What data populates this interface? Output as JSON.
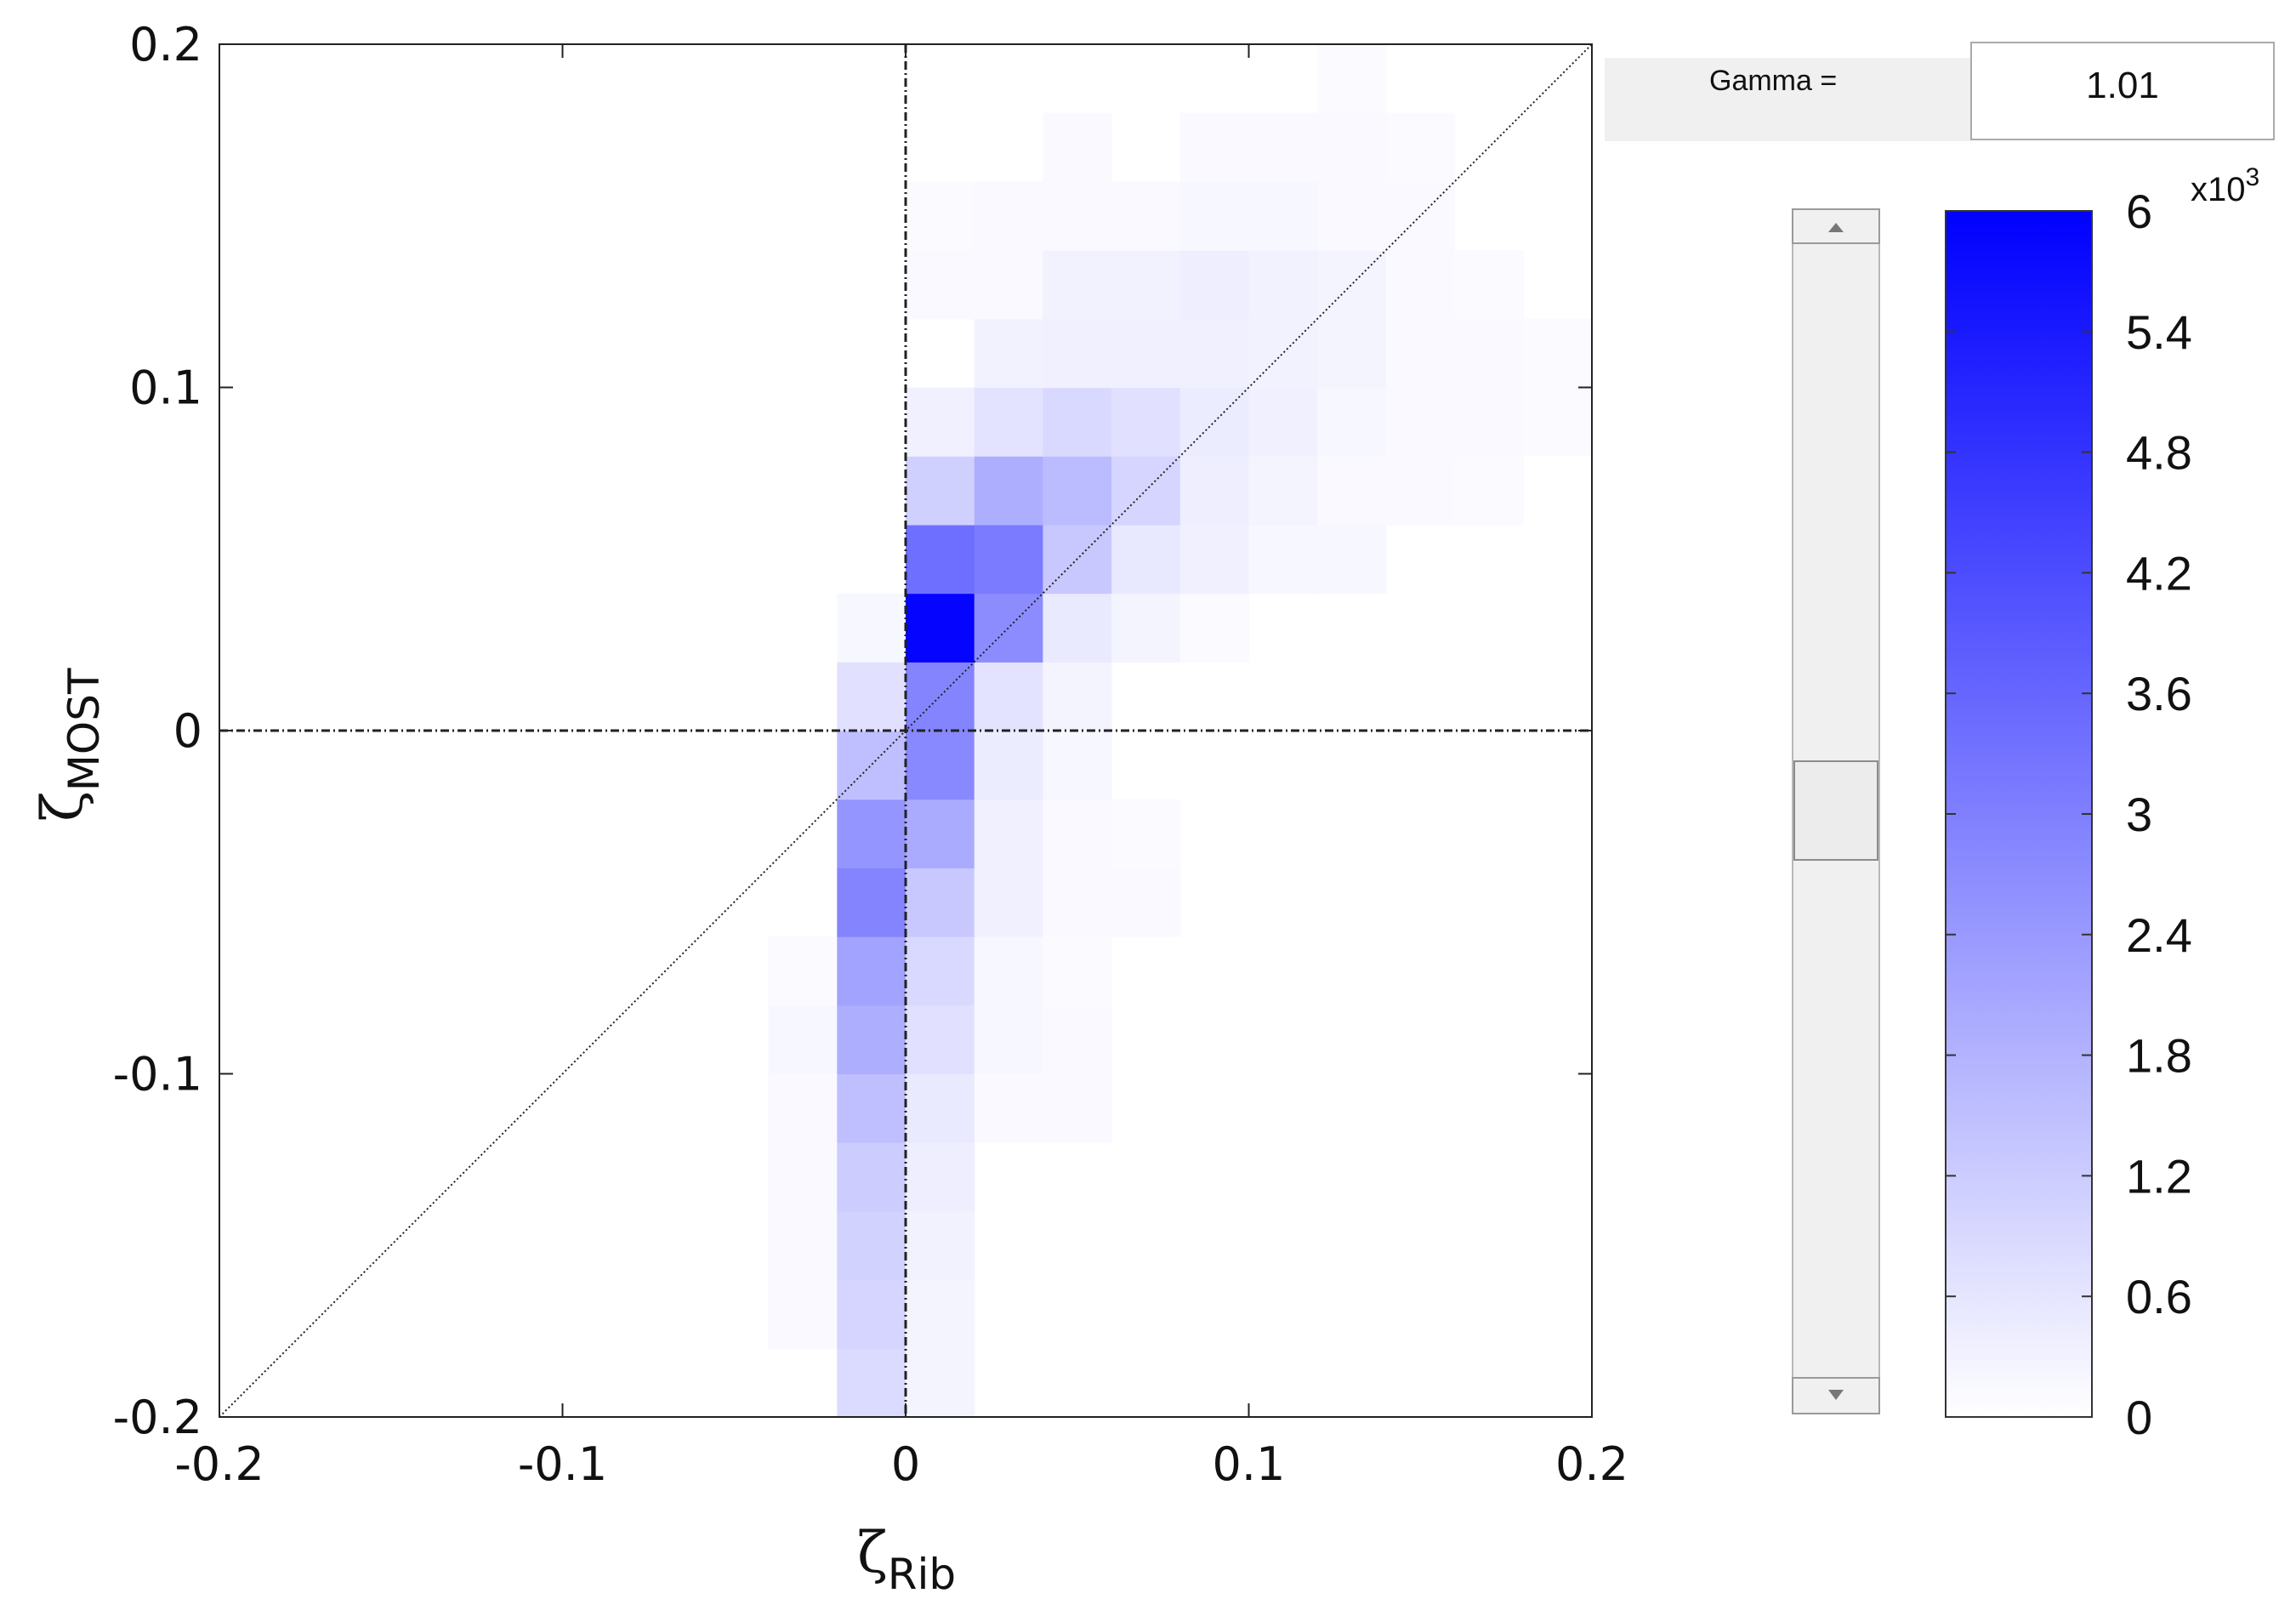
{
  "chart_data": {
    "type": "heatmap",
    "title": "",
    "xlabel": {
      "main": "ζ",
      "sub": "Rib"
    },
    "ylabel": {
      "main": "ζ",
      "sub": "MOST"
    },
    "xlim": [
      -0.2,
      0.2
    ],
    "ylim": [
      -0.2,
      0.2
    ],
    "x_ticks": [
      -0.2,
      -0.1,
      0,
      0.1,
      0.2
    ],
    "x_tick_labels": [
      "-0.2",
      "-0.1",
      "0",
      "0.1",
      "0.2"
    ],
    "y_ticks": [
      -0.2,
      -0.1,
      0,
      0.1,
      0.2
    ],
    "y_tick_labels": [
      "-0.2",
      "-0.1",
      "0",
      "0.1",
      "0.2"
    ],
    "bin_width": 0.02,
    "zero_lines": true,
    "diagonal_line": true,
    "colormap": {
      "low": "#ffffff",
      "high": "#0000ff"
    },
    "color_range": [
      0,
      6000
    ],
    "colorbar_ticks": [
      0,
      0.6,
      1.2,
      1.8,
      2.4,
      3,
      3.6,
      4.2,
      4.8,
      5.4,
      6
    ],
    "colorbar_tick_labels": [
      "0",
      "0.6",
      "1.2",
      "1.8",
      "2.4",
      "3",
      "3.6",
      "4.2",
      "4.8",
      "5.4",
      "6"
    ],
    "colorbar_exponent": {
      "base": "x10",
      "power": "3"
    },
    "cells": [
      [
        -0.02,
        -0.2,
        850
      ],
      [
        0.0,
        -0.2,
        250
      ],
      [
        -0.04,
        -0.18,
        150
      ],
      [
        -0.02,
        -0.18,
        1000
      ],
      [
        0.0,
        -0.18,
        250
      ],
      [
        -0.04,
        -0.16,
        150
      ],
      [
        -0.02,
        -0.16,
        1050
      ],
      [
        0.0,
        -0.16,
        300
      ],
      [
        -0.04,
        -0.14,
        150
      ],
      [
        -0.02,
        -0.14,
        1200
      ],
      [
        0.0,
        -0.14,
        400
      ],
      [
        -0.04,
        -0.12,
        150
      ],
      [
        -0.02,
        -0.12,
        1500
      ],
      [
        0.0,
        -0.12,
        500
      ],
      [
        0.02,
        -0.12,
        150
      ],
      [
        0.04,
        -0.12,
        150
      ],
      [
        -0.04,
        -0.1,
        200
      ],
      [
        -0.02,
        -0.1,
        1900
      ],
      [
        0.0,
        -0.1,
        700
      ],
      [
        0.02,
        -0.1,
        200
      ],
      [
        0.04,
        -0.1,
        150
      ],
      [
        -0.04,
        -0.08,
        100
      ],
      [
        -0.02,
        -0.08,
        2200
      ],
      [
        0.0,
        -0.08,
        900
      ],
      [
        0.02,
        -0.08,
        200
      ],
      [
        0.04,
        -0.08,
        100
      ],
      [
        -0.02,
        -0.06,
        2900
      ],
      [
        0.0,
        -0.06,
        1300
      ],
      [
        0.02,
        -0.06,
        350
      ],
      [
        0.04,
        -0.06,
        150
      ],
      [
        0.06,
        -0.06,
        150
      ],
      [
        -0.02,
        -0.04,
        2500
      ],
      [
        0.0,
        -0.04,
        2000
      ],
      [
        0.02,
        -0.04,
        350
      ],
      [
        0.04,
        -0.04,
        150
      ],
      [
        0.06,
        -0.04,
        100
      ],
      [
        -0.02,
        -0.02,
        1500
      ],
      [
        0.0,
        -0.02,
        2800
      ],
      [
        0.02,
        -0.02,
        450
      ],
      [
        0.04,
        -0.02,
        200
      ],
      [
        -0.02,
        0.0,
        700
      ],
      [
        0.0,
        0.0,
        2900
      ],
      [
        0.02,
        0.0,
        650
      ],
      [
        0.04,
        0.0,
        250
      ],
      [
        -0.02,
        0.02,
        200
      ],
      [
        0.0,
        0.02,
        5900
      ],
      [
        0.02,
        0.02,
        2700
      ],
      [
        0.04,
        0.02,
        500
      ],
      [
        0.06,
        0.02,
        250
      ],
      [
        0.08,
        0.02,
        100
      ],
      [
        0.0,
        0.04,
        3400
      ],
      [
        0.02,
        0.04,
        3100
      ],
      [
        0.04,
        0.04,
        1300
      ],
      [
        0.06,
        0.04,
        550
      ],
      [
        0.08,
        0.04,
        350
      ],
      [
        0.1,
        0.04,
        200
      ],
      [
        0.12,
        0.04,
        200
      ],
      [
        0.0,
        0.06,
        1100
      ],
      [
        0.02,
        0.06,
        1900
      ],
      [
        0.04,
        0.06,
        1600
      ],
      [
        0.06,
        0.06,
        1000
      ],
      [
        0.08,
        0.06,
        400
      ],
      [
        0.1,
        0.06,
        250
      ],
      [
        0.12,
        0.06,
        150
      ],
      [
        0.14,
        0.06,
        150
      ],
      [
        0.16,
        0.06,
        100
      ],
      [
        0.0,
        0.08,
        350
      ],
      [
        0.02,
        0.08,
        650
      ],
      [
        0.04,
        0.08,
        900
      ],
      [
        0.06,
        0.08,
        700
      ],
      [
        0.08,
        0.08,
        450
      ],
      [
        0.1,
        0.08,
        350
      ],
      [
        0.12,
        0.08,
        200
      ],
      [
        0.14,
        0.08,
        150
      ],
      [
        0.16,
        0.08,
        150
      ],
      [
        0.18,
        0.08,
        100
      ],
      [
        0.02,
        0.1,
        300
      ],
      [
        0.04,
        0.1,
        350
      ],
      [
        0.06,
        0.1,
        350
      ],
      [
        0.08,
        0.1,
        350
      ],
      [
        0.1,
        0.1,
        300
      ],
      [
        0.12,
        0.1,
        250
      ],
      [
        0.14,
        0.1,
        150
      ],
      [
        0.16,
        0.1,
        150
      ],
      [
        0.18,
        0.1,
        100
      ],
      [
        0.0,
        0.12,
        150
      ],
      [
        0.02,
        0.12,
        150
      ],
      [
        0.04,
        0.12,
        300
      ],
      [
        0.06,
        0.12,
        300
      ],
      [
        0.08,
        0.12,
        400
      ],
      [
        0.1,
        0.12,
        300
      ],
      [
        0.12,
        0.12,
        250
      ],
      [
        0.14,
        0.12,
        150
      ],
      [
        0.16,
        0.12,
        100
      ],
      [
        0.0,
        0.14,
        100
      ],
      [
        0.02,
        0.14,
        150
      ],
      [
        0.04,
        0.14,
        150
      ],
      [
        0.06,
        0.14,
        150
      ],
      [
        0.08,
        0.14,
        200
      ],
      [
        0.1,
        0.14,
        200
      ],
      [
        0.12,
        0.14,
        150
      ],
      [
        0.14,
        0.14,
        150
      ],
      [
        0.04,
        0.16,
        150
      ],
      [
        0.08,
        0.16,
        150
      ],
      [
        0.1,
        0.16,
        150
      ],
      [
        0.12,
        0.16,
        150
      ],
      [
        0.14,
        0.16,
        100
      ],
      [
        0.12,
        0.18,
        100
      ]
    ]
  },
  "controls": {
    "gamma_label": "Gamma =",
    "gamma_value": "1.01",
    "slider_position": 0.5
  },
  "colors": {
    "axis": "#222222",
    "panel_bg": "#f0f0f0",
    "panel_border": "#aaaaaa"
  }
}
